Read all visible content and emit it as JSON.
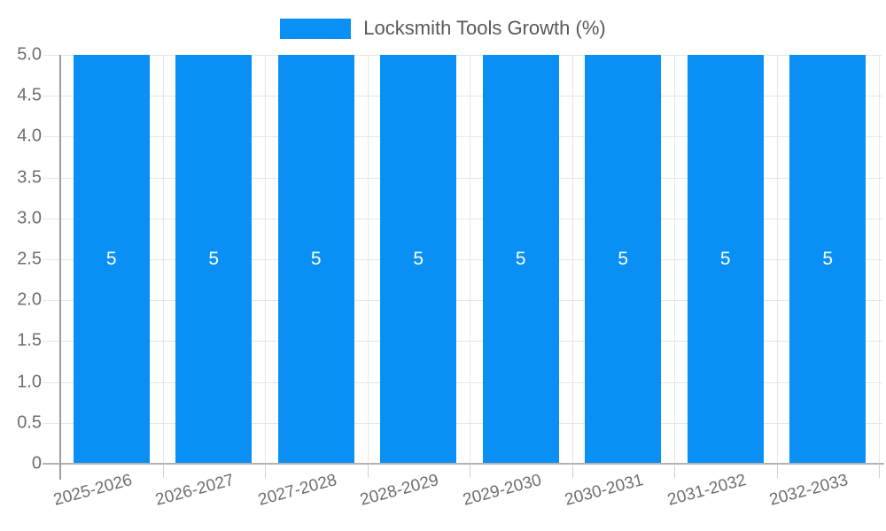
{
  "chart_data": {
    "type": "bar",
    "legend": "Locksmith Tools Growth (%)",
    "legend_position": "top",
    "categories": [
      "2025-2026",
      "2026-2027",
      "2027-2028",
      "2028-2029",
      "2029-2030",
      "2030-2031",
      "2031-2032",
      "2032-2033"
    ],
    "series": [
      {
        "name": "Locksmith Tools Growth (%)",
        "values": [
          5,
          5,
          5,
          5,
          5,
          5,
          5,
          5
        ]
      }
    ],
    "bar_labels": [
      "5",
      "5",
      "5",
      "5",
      "5",
      "5",
      "5",
      "5"
    ],
    "ylim": [
      0,
      5
    ],
    "yticks": [
      "0",
      "0.5",
      "1.0",
      "1.5",
      "2.0",
      "2.5",
      "3.0",
      "3.5",
      "4.0",
      "4.5",
      "5.0"
    ],
    "xlabel": "",
    "ylabel": "",
    "grid": true,
    "x_label_rotation_deg": -15,
    "colors": {
      "bar": "#0a90f5",
      "bar_label": "#ffffff",
      "grid_line": "#e6e6e6",
      "x_axis_line": "#b2b2b2",
      "y_axis_line": "#9e9e9e",
      "tick_text": "#6e6e6e",
      "legend_text": "#58595c",
      "background": "#ffffff"
    }
  }
}
